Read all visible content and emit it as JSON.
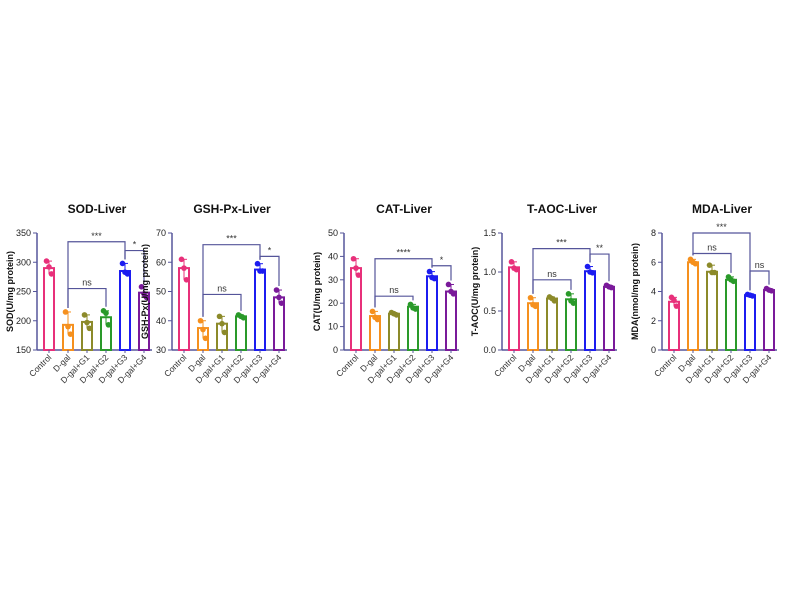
{
  "chart_data": [
    {
      "type": "bar",
      "title": "SOD-Liver",
      "ylabel": "SOD(U/mg protein)",
      "ylim": [
        150,
        350
      ],
      "yticks": [
        150,
        200,
        250,
        300,
        350
      ],
      "categories": [
        "Control",
        "D-gal",
        "D-gal+G1",
        "D-gal+G2",
        "D-gal+G3",
        "D-gal+G4"
      ],
      "values": [
        290,
        193,
        198,
        206,
        285,
        248
      ],
      "points": [
        [
          302,
          292,
          280
        ],
        [
          215,
          190,
          177
        ],
        [
          210,
          197,
          187
        ],
        [
          217,
          213,
          193
        ],
        [
          298,
          283,
          280
        ],
        [
          258,
          246,
          240
        ]
      ],
      "brackets": [
        {
          "from": 1,
          "to": 4,
          "y": 335,
          "label": "***"
        },
        {
          "from": 4,
          "to": 5,
          "y": 320,
          "label": "*"
        },
        {
          "from": 1,
          "to": 3,
          "y": 255,
          "label": "ns"
        }
      ]
    },
    {
      "type": "bar",
      "title": "GSH-Px-Liver",
      "ylabel": "GSH-Px(U/mg protein)",
      "ylim": [
        30,
        70
      ],
      "yticks": [
        30,
        40,
        50,
        60,
        70
      ],
      "categories": [
        "Control",
        "D-gal",
        "D-gal+G1",
        "D-gal+G2",
        "D-gal+G3",
        "D-gal+G4"
      ],
      "values": [
        58,
        37.5,
        39,
        41.5,
        57.5,
        48
      ],
      "points": [
        [
          61,
          58,
          54
        ],
        [
          40,
          37,
          34
        ],
        [
          41.5,
          39,
          36
        ],
        [
          42,
          41.5,
          41
        ],
        [
          59.5,
          57,
          57
        ],
        [
          50.5,
          48,
          46
        ]
      ],
      "brackets": [
        {
          "from": 1,
          "to": 4,
          "y": 66,
          "label": "***"
        },
        {
          "from": 4,
          "to": 5,
          "y": 62,
          "label": "*"
        },
        {
          "from": 1,
          "to": 3,
          "y": 49,
          "label": "ns"
        }
      ]
    },
    {
      "type": "bar",
      "title": "CAT-Liver",
      "ylabel": "CAT(U/mg protein)",
      "ylim": [
        0,
        50
      ],
      "yticks": [
        0,
        10,
        20,
        30,
        40,
        50
      ],
      "categories": [
        "Control",
        "D-gal",
        "D-gal+G1",
        "D-gal+G2",
        "D-gal+G3",
        "D-gal+G4"
      ],
      "values": [
        35,
        14.5,
        15.5,
        18.5,
        31.5,
        25
      ],
      "points": [
        [
          39,
          35,
          32
        ],
        [
          16.5,
          14,
          13
        ],
        [
          16,
          15.5,
          15
        ],
        [
          19.5,
          18,
          17.5
        ],
        [
          33.5,
          31,
          30.5
        ],
        [
          28,
          25,
          24
        ]
      ],
      "brackets": [
        {
          "from": 1,
          "to": 4,
          "y": 39,
          "label": "****"
        },
        {
          "from": 4,
          "to": 5,
          "y": 36,
          "label": "*"
        },
        {
          "from": 1,
          "to": 3,
          "y": 23,
          "label": "ns"
        }
      ]
    },
    {
      "type": "bar",
      "title": "T-AOC-Liver",
      "ylabel": "T-AOC(U/mg protein)",
      "ylim": [
        0,
        1.5
      ],
      "yticks": [
        0.0,
        0.5,
        1.0,
        1.5
      ],
      "ytick_labels": [
        "0.0",
        "0.5",
        "1.0",
        "1.5"
      ],
      "categories": [
        "Control",
        "D-gal",
        "D-gal+G1",
        "D-gal+G2",
        "D-gal+G3",
        "D-gal+G4"
      ],
      "values": [
        1.06,
        0.6,
        0.66,
        0.65,
        1.01,
        0.81
      ],
      "points": [
        [
          1.13,
          1.05,
          1.03
        ],
        [
          0.67,
          0.58,
          0.56
        ],
        [
          0.68,
          0.66,
          0.63
        ],
        [
          0.72,
          0.63,
          0.6
        ],
        [
          1.07,
          1.0,
          0.99
        ],
        [
          0.83,
          0.81,
          0.8
        ]
      ],
      "brackets": [
        {
          "from": 1,
          "to": 4,
          "y": 1.3,
          "label": "***"
        },
        {
          "from": 4,
          "to": 5,
          "y": 1.23,
          "label": "**"
        },
        {
          "from": 1,
          "to": 3,
          "y": 0.9,
          "label": "ns"
        }
      ]
    },
    {
      "type": "bar",
      "title": "MDA-Liver",
      "ylabel": "MDA(nmol/mg protein)",
      "ylim": [
        0,
        8
      ],
      "yticks": [
        0,
        2,
        4,
        6,
        8
      ],
      "categories": [
        "Control",
        "D-gal",
        "D-gal+G1",
        "D-gal+G2",
        "D-gal+G3",
        "D-gal+G4"
      ],
      "values": [
        3.3,
        6.0,
        5.35,
        4.8,
        3.75,
        4.1
      ],
      "points": [
        [
          3.6,
          3.4,
          3.0
        ],
        [
          6.2,
          6.0,
          5.9
        ],
        [
          5.8,
          5.3,
          5.3
        ],
        [
          5.0,
          4.8,
          4.7
        ],
        [
          3.8,
          3.75,
          3.7
        ],
        [
          4.2,
          4.1,
          4.05
        ]
      ],
      "brackets": [
        {
          "from": 1,
          "to": 4,
          "y": 8,
          "label": "***"
        },
        {
          "from": 1,
          "to": 3,
          "y": 6.6,
          "label": "ns"
        },
        {
          "from": 4,
          "to": 5,
          "y": 5.4,
          "label": "ns"
        }
      ]
    }
  ],
  "colors": [
    "#e8307a",
    "#f5901e",
    "#8c8a2a",
    "#2a9a2a",
    "#1c1cf0",
    "#7a1a9a"
  ],
  "axis_color": "#55559a"
}
